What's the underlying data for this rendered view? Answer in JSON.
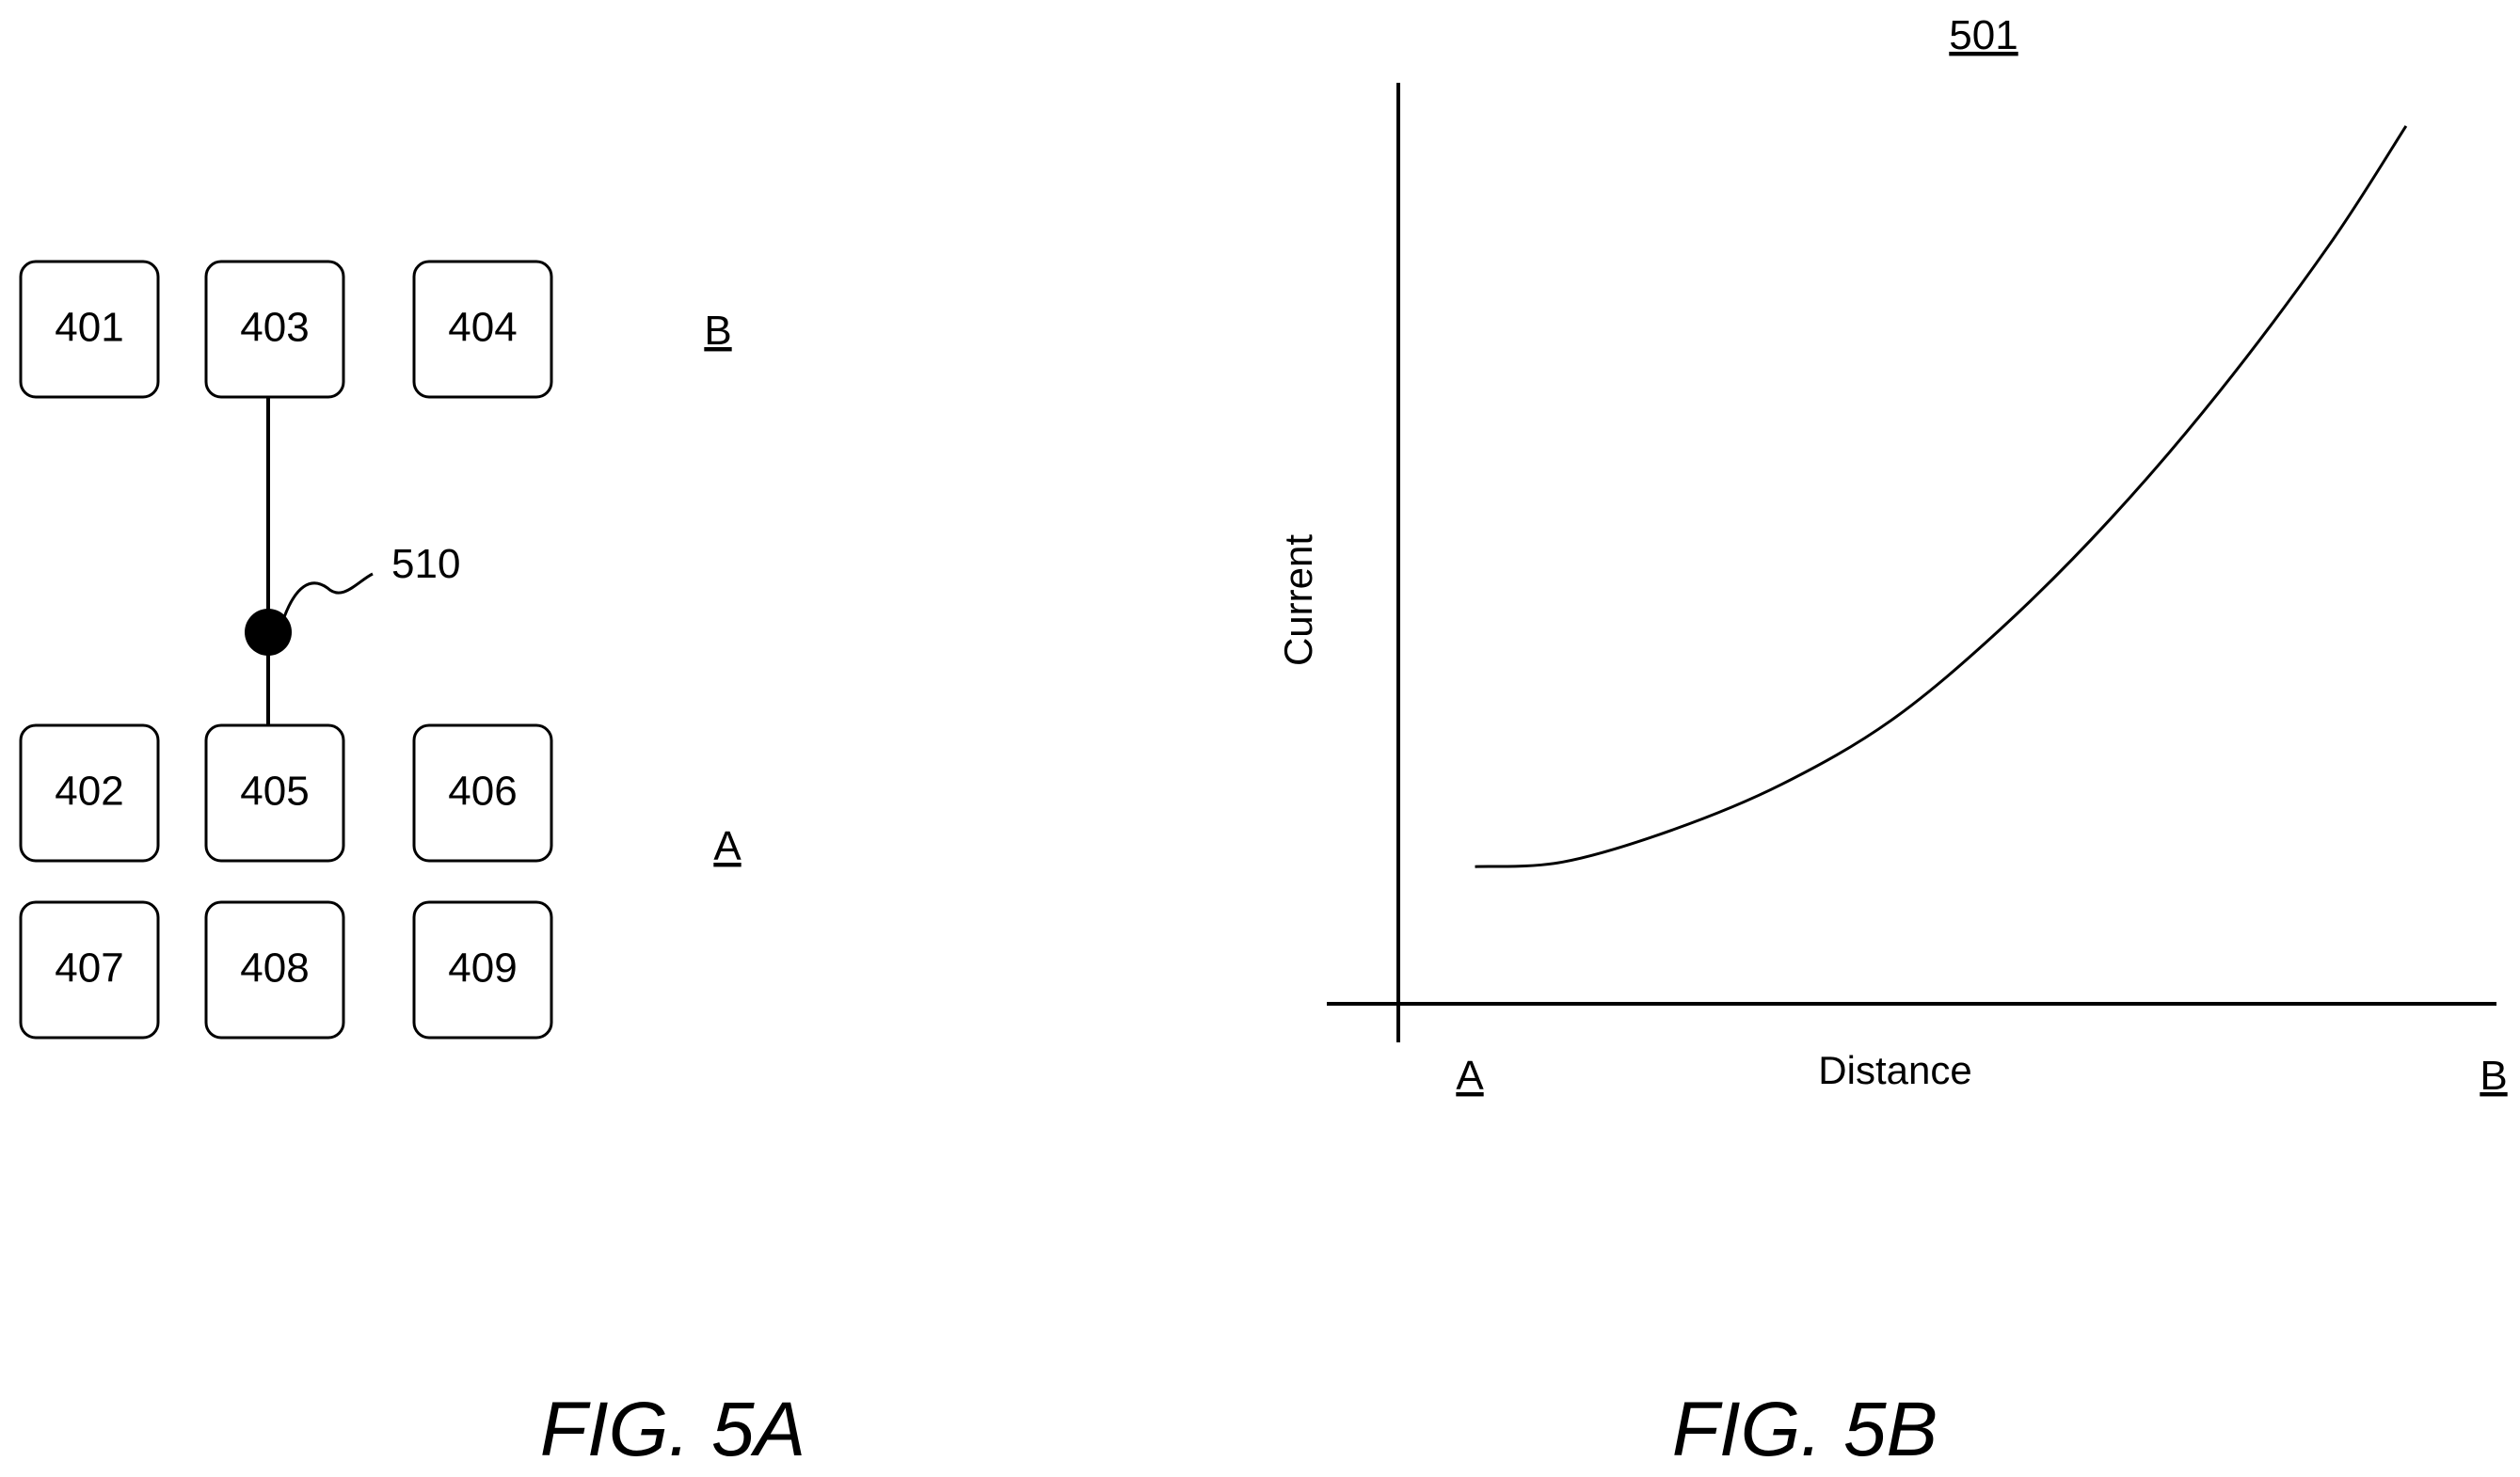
{
  "fig_5a": {
    "cells": [
      {
        "id": "401",
        "label": "401"
      },
      {
        "id": "403",
        "label": "403"
      },
      {
        "id": "404",
        "label": "404"
      },
      {
        "id": "402",
        "label": "402"
      },
      {
        "id": "405",
        "label": "405"
      },
      {
        "id": "406",
        "label": "406"
      },
      {
        "id": "407",
        "label": "407"
      },
      {
        "id": "408",
        "label": "408"
      },
      {
        "id": "409",
        "label": "409"
      }
    ],
    "connection": {
      "from": "403",
      "to": "405"
    },
    "node_label": "510",
    "marker_top": "B",
    "marker_bottom": "A",
    "caption": "FIG. 5A"
  },
  "fig_5b": {
    "ref_label": "501",
    "caption": "FIG. 5B"
  },
  "chart_data": {
    "type": "line",
    "title": "",
    "xlabel": "Distance",
    "ylabel": "Current",
    "x_tick_labels": [
      "A",
      "B"
    ],
    "xlim": [
      0,
      1
    ],
    "ylim": [
      0,
      1
    ],
    "grid": false,
    "legend": "none",
    "series": [
      {
        "x": [
          0.07,
          0.15,
          0.25,
          0.35,
          0.45,
          0.55,
          0.65,
          0.75,
          0.85,
          0.92
        ],
        "y": [
          0.15,
          0.155,
          0.19,
          0.24,
          0.31,
          0.41,
          0.53,
          0.67,
          0.83,
          0.96
        ]
      }
    ]
  }
}
